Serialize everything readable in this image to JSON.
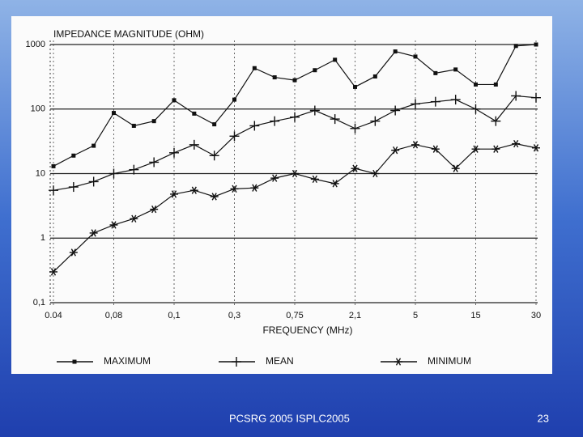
{
  "chart_data": {
    "type": "line",
    "title": "IMPEDANCE MAGNITUDE (OHM)",
    "x_label": "FREQUENCY (MHz)",
    "categories": [
      "0.04",
      null,
      null,
      "0,08",
      null,
      null,
      "0,1",
      null,
      null,
      "0,3",
      null,
      null,
      "0,75",
      null,
      null,
      "2,1",
      null,
      null,
      "5",
      null,
      null,
      "15",
      null,
      null,
      "30"
    ],
    "series": [
      {
        "name": "MAXIMUM",
        "color": "#111111",
        "marker": "square",
        "values": [
          13,
          19,
          27,
          87,
          55,
          65,
          137,
          85,
          58,
          140,
          430,
          310,
          280,
          400,
          580,
          220,
          320,
          780,
          650,
          360,
          410,
          240,
          240,
          950,
          1000
        ]
      },
      {
        "name": "MEAN",
        "color": "#111111",
        "marker": "plus",
        "values": [
          5.5,
          6.2,
          7.5,
          10,
          11.5,
          15,
          21,
          28,
          19,
          38,
          55,
          65,
          75,
          95,
          70,
          50,
          65,
          95,
          120,
          130,
          140,
          100,
          65,
          160,
          150
        ]
      },
      {
        "name": "MINIMUM",
        "color": "#111111",
        "marker": "asterisk",
        "values": [
          0.3,
          0.6,
          1.2,
          1.6,
          2,
          2.8,
          4.8,
          5.5,
          4.4,
          5.8,
          6,
          8.5,
          10,
          8.2,
          7,
          12,
          10,
          23,
          28,
          24,
          12,
          24,
          24,
          29,
          25
        ]
      }
    ],
    "ylim": [
      0.1,
      1000
    ],
    "yticks": [
      {
        "value": 0.1,
        "label": "0,1"
      },
      1,
      10,
      100,
      1000
    ],
    "log_y": true,
    "grid": true,
    "legend": "bottom"
  },
  "footer": {
    "left": "PCSRG 2005 ISPLC2005",
    "page": "23"
  }
}
